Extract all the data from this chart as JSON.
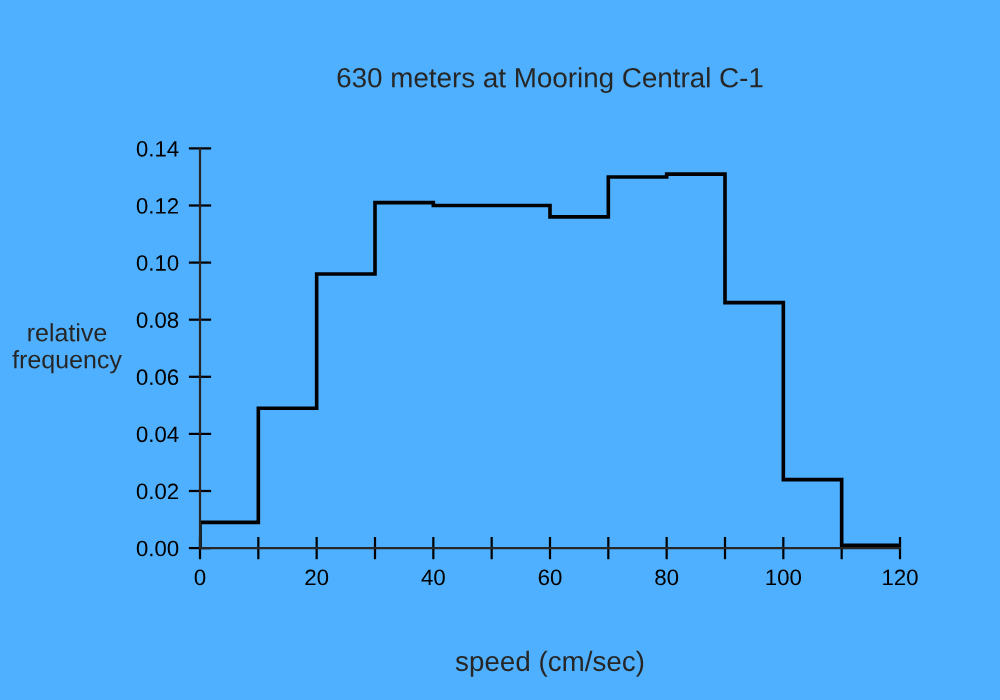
{
  "chart_data": {
    "type": "histogram",
    "title": "630 meters at Mooring Central C-1",
    "xlabel": "speed (cm/sec)",
    "ylabel": "relative\nfrequency",
    "bins": [
      0,
      10,
      20,
      30,
      40,
      50,
      60,
      70,
      80,
      90,
      100,
      110,
      120
    ],
    "values": [
      0.009,
      0.049,
      0.096,
      0.121,
      0.12,
      0.12,
      0.116,
      0.13,
      0.131,
      0.086,
      0.024,
      0.001
    ],
    "color": "#000000",
    "xlim": [
      0,
      120
    ],
    "ylim": [
      0,
      0.14
    ],
    "xticks": [
      0,
      {
        "value": 10,
        "label": null
      },
      20,
      {
        "value": 30,
        "label": null
      },
      40,
      {
        "value": 50,
        "label": null
      },
      60,
      {
        "value": 70,
        "label": null
      },
      80,
      {
        "value": 90,
        "label": null
      },
      100,
      {
        "value": 110,
        "label": null
      },
      120
    ],
    "yticks": [
      {
        "value": 0,
        "label": "0.00"
      },
      {
        "value": 0.02,
        "label": "0.02"
      },
      {
        "value": 0.04,
        "label": "0.04"
      },
      {
        "value": 0.06,
        "label": "0.06"
      },
      {
        "value": 0.08,
        "label": "0.08"
      },
      {
        "value": 0.1,
        "label": "0.10"
      },
      {
        "value": 0.12,
        "label": "0.12"
      },
      {
        "value": 0.14,
        "label": "0.14"
      }
    ],
    "grid": false,
    "legend": false
  }
}
